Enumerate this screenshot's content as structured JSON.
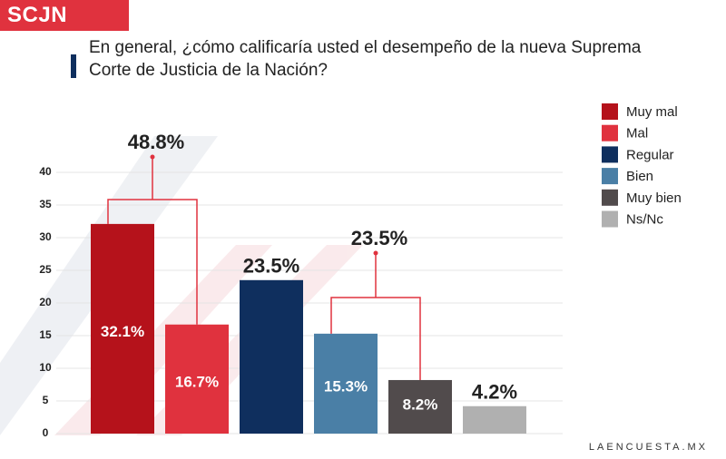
{
  "header": {
    "badge": "SCJN",
    "source": "LAENCUESTA.MX"
  },
  "chart_data": {
    "type": "bar",
    "title": "En general, ¿cómo calificaría usted el desempeño de la nueva Suprema Corte de Justicia de la Nación?",
    "categories": [
      "Muy mal",
      "Mal",
      "Regular",
      "Bien",
      "Muy bien",
      "Ns/Nc"
    ],
    "values": [
      32.1,
      16.7,
      23.5,
      15.3,
      8.2,
      4.2
    ],
    "value_labels": [
      "32.1%",
      "16.7%",
      "23.5%",
      "15.3%",
      "8.2%",
      "4.2%"
    ],
    "colors": [
      "#b5121b",
      "#e0323e",
      "#0f2f5e",
      "#4a7fa6",
      "#514b4c",
      "#b0b0b0"
    ],
    "annotations": [
      "48.8%",
      "23.5%"
    ],
    "ylim": [
      0,
      40
    ],
    "yticks": [
      0,
      5,
      10,
      15,
      20,
      25,
      30,
      35,
      40
    ],
    "grid": true,
    "legend": "top-right"
  }
}
